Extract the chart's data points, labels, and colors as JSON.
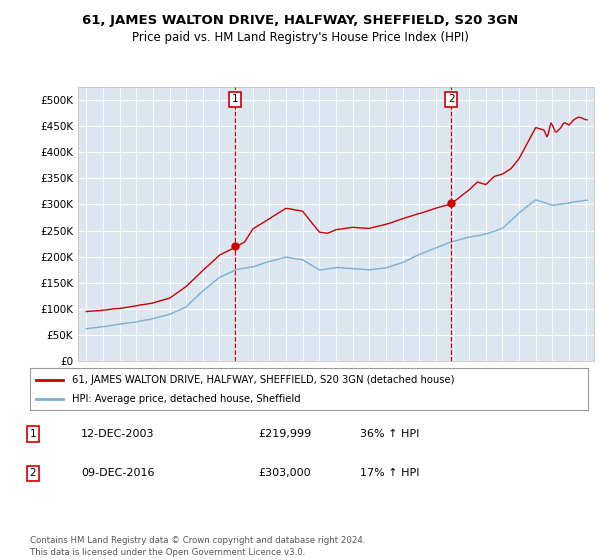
{
  "title": "61, JAMES WALTON DRIVE, HALFWAY, SHEFFIELD, S20 3GN",
  "subtitle": "Price paid vs. HM Land Registry's House Price Index (HPI)",
  "background_color": "#dce6f1",
  "plot_bg_color": "#dce6f1",
  "red_line_color": "#cc0000",
  "blue_line_color": "#7bafd4",
  "sale1_date": "12-DEC-2003",
  "sale1_price": 219999,
  "sale1_label": "1",
  "sale1_hpi": "36% ↑ HPI",
  "sale2_date": "09-DEC-2016",
  "sale2_price": 303000,
  "sale2_label": "2",
  "sale2_hpi": "17% ↑ HPI",
  "legend_line1": "61, JAMES WALTON DRIVE, HALFWAY, SHEFFIELD, S20 3GN (detached house)",
  "legend_line2": "HPI: Average price, detached house, Sheffield",
  "footer": "Contains HM Land Registry data © Crown copyright and database right 2024.\nThis data is licensed under the Open Government Licence v3.0.",
  "ylabel_ticks": [
    "£0",
    "£50K",
    "£100K",
    "£150K",
    "£200K",
    "£250K",
    "£300K",
    "£350K",
    "£400K",
    "£450K",
    "£500K"
  ],
  "yticks": [
    0,
    50000,
    100000,
    150000,
    200000,
    250000,
    300000,
    350000,
    400000,
    450000,
    500000
  ],
  "ylim": [
    0,
    525000
  ],
  "xlim_start": 1994.5,
  "xlim_end": 2025.5
}
